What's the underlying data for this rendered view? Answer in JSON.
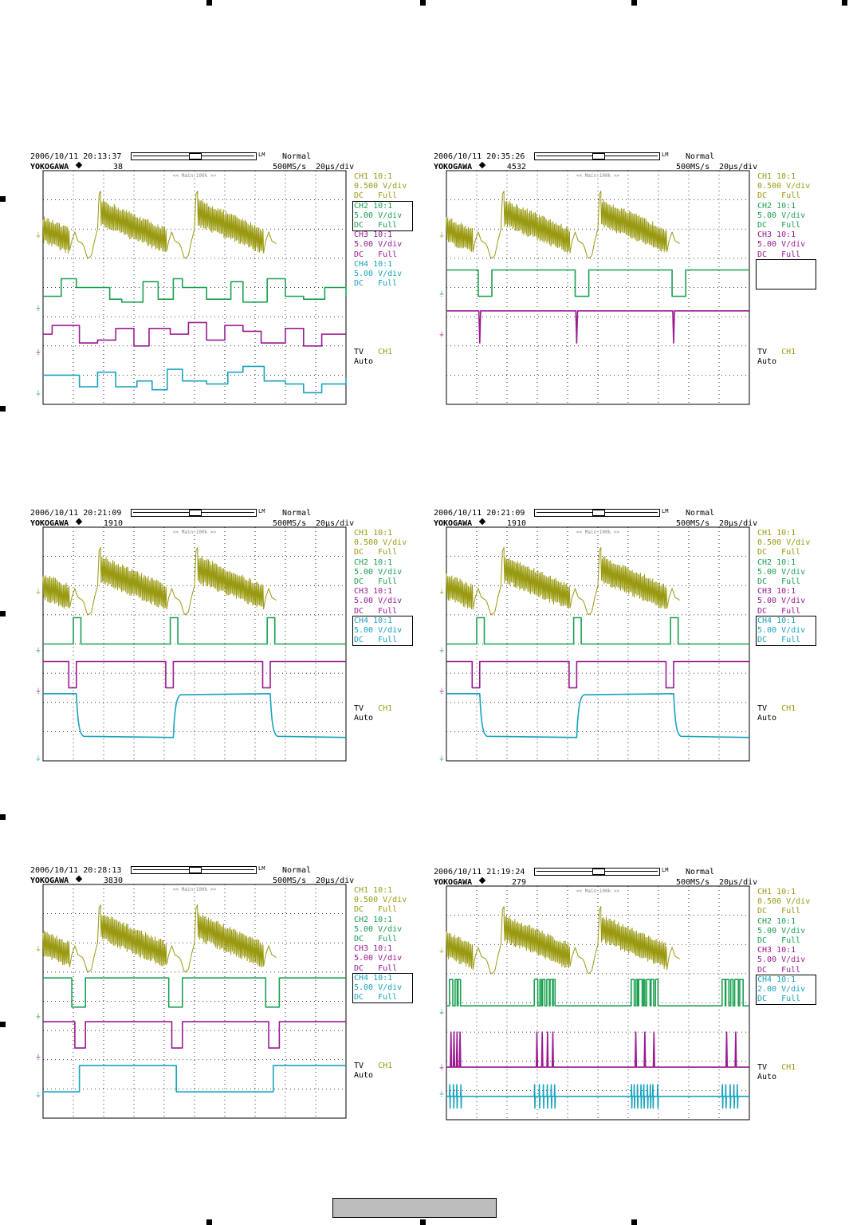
{
  "colors": {
    "ch1": "#9a9a12",
    "ch2": "#1aa150",
    "ch3": "#9b1a92",
    "ch4": "#18a3be"
  },
  "common": {
    "brand": "YOKOGAWA",
    "diamond_icon": "diamond-icon",
    "mode": "Normal",
    "rate": "500MS/s",
    "tdiv": "20µs/div",
    "main_label": "<< Main:100k >>",
    "lm": "LM",
    "trig_label": "TV",
    "trig_source": "CH1",
    "trig_mode": "Auto"
  },
  "scopes": [
    {
      "datetime": "2006/10/11 20:13:37",
      "count": "38",
      "sel": 1,
      "channels": [
        {
          "name": "CH1 10:1",
          "vdiv": "0.500 V/div",
          "coupling": "DC",
          "bw": "Full"
        },
        {
          "name": "CH2 10:1",
          "vdiv": "5.00 V/div",
          "coupling": "DC",
          "bw": "Full"
        },
        {
          "name": "CH3 10:1",
          "vdiv": "5.00 V/div",
          "coupling": "DC",
          "bw": "Full"
        },
        {
          "name": "CH4 10:1",
          "vdiv": "5.00 V/div",
          "coupling": "DC",
          "bw": "Full"
        }
      ]
    },
    {
      "datetime": "2006/10/11 20:35:26",
      "count": "4532",
      "sel": 3,
      "channels": [
        {
          "name": "CH1 10:1",
          "vdiv": "0.500 V/div",
          "coupling": "DC",
          "bw": "Full"
        },
        {
          "name": "CH2 10:1",
          "vdiv": "5.00 V/div",
          "coupling": "DC",
          "bw": "Full"
        },
        {
          "name": "CH3 10:1",
          "vdiv": "5.00 V/div",
          "coupling": "DC",
          "bw": "Full"
        }
      ]
    },
    {
      "datetime": "2006/10/11 20:21:09",
      "count": "1910",
      "sel": 3,
      "channels": [
        {
          "name": "CH1 10:1",
          "vdiv": "0.500 V/div",
          "coupling": "DC",
          "bw": "Full"
        },
        {
          "name": "CH2 10:1",
          "vdiv": "5.00 V/div",
          "coupling": "DC",
          "bw": "Full"
        },
        {
          "name": "CH3 10:1",
          "vdiv": "5.00 V/div",
          "coupling": "DC",
          "bw": "Full"
        },
        {
          "name": "CH4 10:1",
          "vdiv": "5.00 V/div",
          "coupling": "DC",
          "bw": "Full"
        }
      ]
    },
    {
      "datetime": "2006/10/11 20:21:09",
      "count": "1910",
      "sel": 3,
      "channels": [
        {
          "name": "CH1 10:1",
          "vdiv": "0.500 V/div",
          "coupling": "DC",
          "bw": "Full"
        },
        {
          "name": "CH2 10:1",
          "vdiv": "5.00 V/div",
          "coupling": "DC",
          "bw": "Full"
        },
        {
          "name": "CH3 10:1",
          "vdiv": "5.00 V/div",
          "coupling": "DC",
          "bw": "Full"
        },
        {
          "name": "CH4 10:1",
          "vdiv": "5.00 V/div",
          "coupling": "DC",
          "bw": "Full"
        }
      ]
    },
    {
      "datetime": "2006/10/11 20:28:13",
      "count": "3830",
      "sel": 3,
      "channels": [
        {
          "name": "CH1 10:1",
          "vdiv": "0.500 V/div",
          "coupling": "DC",
          "bw": "Full"
        },
        {
          "name": "CH2 10:1",
          "vdiv": "5.00 V/div",
          "coupling": "DC",
          "bw": "Full"
        },
        {
          "name": "CH3 10:1",
          "vdiv": "5.00 V/div",
          "coupling": "DC",
          "bw": "Full"
        },
        {
          "name": "CH4 10:1",
          "vdiv": "5.00 V/div",
          "coupling": "DC",
          "bw": "Full"
        }
      ]
    },
    {
      "datetime": "2006/10/11 21:19:24",
      "count": "279",
      "sel": 3,
      "channels": [
        {
          "name": "CH1 10:1",
          "vdiv": "0.500 V/div",
          "coupling": "DC",
          "bw": "Full"
        },
        {
          "name": "CH2 10:1",
          "vdiv": "5.00 V/div",
          "coupling": "DC",
          "bw": "Full"
        },
        {
          "name": "CH3 10:1",
          "vdiv": "5.00 V/div",
          "coupling": "DC",
          "bw": "Full"
        },
        {
          "name": "CH4 10:1",
          "vdiv": "2.00 V/div",
          "coupling": "DC",
          "bw": "Full"
        }
      ]
    }
  ],
  "chart_data": [
    {
      "type": "line",
      "grid": true,
      "x_unit": "div",
      "y_unit": "div",
      "xlim": [
        0,
        10
      ],
      "ylim": [
        0,
        8
      ],
      "series": [
        {
          "channel": "CH1",
          "kind": "video",
          "baseline": 5.8
        },
        {
          "channel": "CH2",
          "kind": "multilevel",
          "baseline": 3.3,
          "x": [
            0,
            0.6,
            1.1,
            2.2,
            2.6,
            3.3,
            3.8,
            4.3,
            4.6,
            5.4,
            6.2,
            6.6,
            7.4,
            8.0,
            8.6,
            9.3,
            10
          ],
          "y": [
            3.7,
            4.3,
            4.0,
            3.6,
            3.5,
            4.2,
            3.6,
            4.3,
            4.0,
            3.6,
            4.2,
            3.5,
            4.3,
            3.7,
            3.6,
            4.0,
            3.7
          ]
        },
        {
          "channel": "CH3",
          "kind": "multilevel",
          "baseline": 1.8,
          "x": [
            0,
            0.3,
            1.2,
            1.8,
            2.4,
            3.0,
            3.5,
            4.2,
            4.8,
            5.4,
            6.0,
            6.6,
            7.2,
            8.0,
            8.6,
            9.2,
            10
          ],
          "y": [
            2.4,
            2.7,
            2.1,
            2.2,
            2.6,
            2.0,
            2.6,
            2.4,
            2.8,
            2.2,
            2.7,
            2.5,
            2.1,
            2.6,
            2.0,
            2.4,
            2.4
          ]
        },
        {
          "channel": "CH4",
          "kind": "multilevel",
          "baseline": 0.4,
          "x": [
            0,
            1.2,
            1.8,
            2.4,
            3.1,
            3.6,
            4.1,
            4.6,
            5.4,
            6.1,
            6.6,
            7.3,
            8.0,
            8.6,
            9.2,
            10
          ],
          "y": [
            1.0,
            0.6,
            1.1,
            0.6,
            0.8,
            0.5,
            1.2,
            0.8,
            0.7,
            1.1,
            1.3,
            0.8,
            0.7,
            0.4,
            0.7,
            0.9
          ]
        }
      ]
    },
    {
      "type": "line",
      "grid": true,
      "x_unit": "div",
      "y_unit": "div",
      "xlim": [
        0,
        10
      ],
      "ylim": [
        0,
        8
      ],
      "series": [
        {
          "channel": "CH1",
          "kind": "video",
          "baseline": 5.8
        },
        {
          "channel": "CH2",
          "kind": "pulse",
          "baseline": 3.8,
          "high": 4.6,
          "low": 3.7,
          "pulse_starts": [
            1.05,
            4.25,
            7.45
          ],
          "pulse_width": 0.45,
          "invert": true
        },
        {
          "channel": "CH3",
          "kind": "spike",
          "baseline": 2.4,
          "level": 3.2,
          "spike_to": 2.1,
          "spike_at": [
            1.1,
            4.3,
            7.5
          ]
        }
      ]
    },
    {
      "type": "line",
      "grid": true,
      "x_unit": "div",
      "y_unit": "div",
      "xlim": [
        0,
        10
      ],
      "ylim": [
        0,
        8
      ],
      "series": [
        {
          "channel": "CH1",
          "kind": "video",
          "baseline": 5.8
        },
        {
          "channel": "CH2",
          "kind": "pulse",
          "baseline": 3.8,
          "high": 4.9,
          "low": 4.0,
          "pulse_starts": [
            1.0,
            4.2,
            7.4
          ],
          "pulse_width": 0.25,
          "invert": false
        },
        {
          "channel": "CH3",
          "kind": "pulse",
          "baseline": 2.4,
          "high": 3.4,
          "low": 2.5,
          "pulse_starts": [
            0.85,
            4.05,
            7.25
          ],
          "pulse_width": 0.25,
          "invert": true
        },
        {
          "channel": "CH4",
          "kind": "slow",
          "baseline": 0.1,
          "high": 2.3,
          "low": 0.8,
          "edges": [
            [
              1.1,
              "fall"
            ],
            [
              4.3,
              "rise"
            ],
            [
              7.5,
              "fall"
            ]
          ],
          "start": "high"
        }
      ]
    },
    {
      "type": "line",
      "grid": true,
      "x_unit": "div",
      "y_unit": "div",
      "xlim": [
        0,
        10
      ],
      "ylim": [
        0,
        8
      ],
      "series": [
        {
          "channel": "CH1",
          "kind": "video",
          "baseline": 5.8
        },
        {
          "channel": "CH2",
          "kind": "pulse",
          "baseline": 3.8,
          "high": 4.9,
          "low": 4.0,
          "pulse_starts": [
            1.0,
            4.2,
            7.4
          ],
          "pulse_width": 0.25,
          "invert": false
        },
        {
          "channel": "CH3",
          "kind": "pulse",
          "baseline": 2.4,
          "high": 3.4,
          "low": 2.5,
          "pulse_starts": [
            0.85,
            4.05,
            7.25
          ],
          "pulse_width": 0.25,
          "invert": true
        },
        {
          "channel": "CH4",
          "kind": "slow",
          "baseline": 0.1,
          "high": 2.3,
          "low": 0.8,
          "edges": [
            [
              1.1,
              "fall"
            ],
            [
              4.3,
              "rise"
            ],
            [
              7.5,
              "fall"
            ]
          ],
          "start": "high"
        }
      ]
    },
    {
      "type": "line",
      "grid": true,
      "x_unit": "div",
      "y_unit": "div",
      "xlim": [
        0,
        10
      ],
      "ylim": [
        0,
        8
      ],
      "series": [
        {
          "channel": "CH1",
          "kind": "video",
          "baseline": 5.8
        },
        {
          "channel": "CH2",
          "kind": "pulse",
          "baseline": 3.5,
          "high": 4.8,
          "low": 3.8,
          "pulse_starts": [
            0.95,
            4.15,
            7.35
          ],
          "pulse_width": 0.45,
          "invert": true
        },
        {
          "channel": "CH3",
          "kind": "pulse",
          "baseline": 2.1,
          "high": 3.3,
          "low": 2.4,
          "pulse_starts": [
            1.05,
            4.25,
            7.45
          ],
          "pulse_width": 0.35,
          "invert": true
        },
        {
          "channel": "CH4",
          "kind": "step",
          "baseline": 0.8,
          "high": 1.8,
          "low": 0.9,
          "edges": [
            [
              1.2,
              "rise"
            ],
            [
              4.4,
              "fall"
            ],
            [
              7.6,
              "rise"
            ]
          ],
          "start": "low"
        }
      ]
    },
    {
      "type": "line",
      "grid": true,
      "x_unit": "div",
      "y_unit": "div",
      "xlim": [
        0,
        10
      ],
      "ylim": [
        0,
        8
      ],
      "series": [
        {
          "channel": "CH1",
          "kind": "video",
          "baseline": 5.8
        },
        {
          "channel": "CH2",
          "kind": "burst",
          "baseline": 3.7,
          "high": 4.8,
          "low": 3.9,
          "bursts": [
            [
              0.1,
              0.5
            ],
            [
              2.9,
              3.6
            ],
            [
              6.1,
              7.0
            ],
            [
              9.1,
              9.7
            ]
          ]
        },
        {
          "channel": "CH3",
          "kind": "spikes_up",
          "baseline": 1.8,
          "level": 1.8,
          "spike_to": 3.0,
          "bursts": [
            [
              0.1,
              0.5
            ],
            [
              2.9,
              3.6
            ],
            [
              6.1,
              7.0
            ],
            [
              9.1,
              9.7
            ]
          ]
        },
        {
          "channel": "CH4",
          "kind": "noise_spikes",
          "baseline": 0.9,
          "level": 0.8,
          "bursts": [
            [
              0.1,
              0.5
            ],
            [
              2.9,
              3.6
            ],
            [
              6.1,
              7.0
            ],
            [
              9.1,
              9.7
            ]
          ]
        }
      ]
    }
  ]
}
